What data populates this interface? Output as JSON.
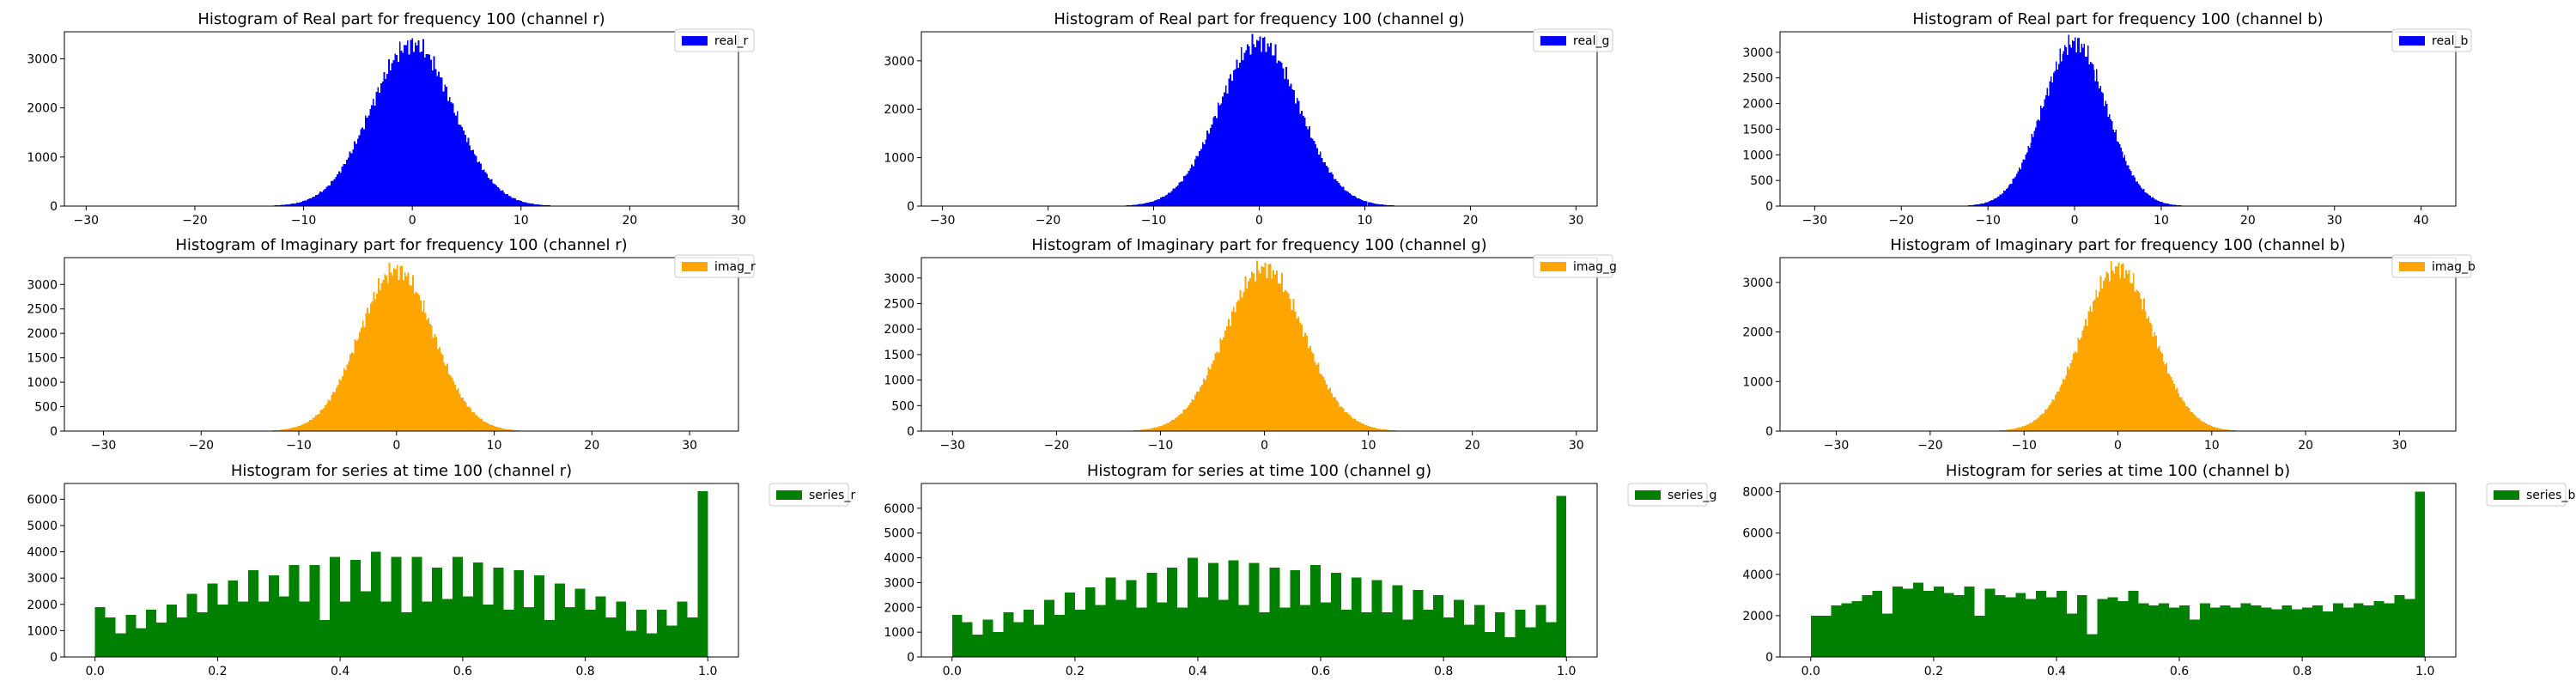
{
  "figure": {
    "background": "#ffffff"
  },
  "colors": {
    "real": "#0000ff",
    "imag": "#ffa500",
    "series": "#008000"
  },
  "chart_data": [
    {
      "id": "real_r",
      "type": "bar",
      "kind": "gaussian",
      "title": "Histogram of Real part for frequency 100 (channel r)",
      "legend": "real_r",
      "legend_position": "top-right",
      "color": "#0000ff",
      "xlim": [
        -32,
        30
      ],
      "ylim": [
        0,
        3550
      ],
      "xticks": [
        -30,
        -20,
        -10,
        0,
        10,
        20,
        30
      ],
      "yticks": [
        0,
        1000,
        2000,
        3000
      ],
      "distribution": {
        "center": 0,
        "sigma": 3.8,
        "peak": 3300,
        "range": [
          -22,
          21
        ],
        "bins": 300
      }
    },
    {
      "id": "real_g",
      "type": "bar",
      "kind": "gaussian",
      "title": "Histogram of Real part for frequency 100 (channel g)",
      "legend": "real_g",
      "legend_position": "top-right",
      "color": "#0000ff",
      "xlim": [
        -32,
        32
      ],
      "ylim": [
        0,
        3600
      ],
      "xticks": [
        -30,
        -20,
        -10,
        0,
        10,
        20,
        30
      ],
      "yticks": [
        0,
        1000,
        2000,
        3000
      ],
      "distribution": {
        "center": 0,
        "sigma": 3.8,
        "peak": 3400,
        "range": [
          -22,
          22
        ],
        "bins": 300
      }
    },
    {
      "id": "real_b",
      "type": "bar",
      "kind": "gaussian",
      "title": "Histogram of Real part for frequency 100 (channel b)",
      "legend": "real_b",
      "legend_position": "top-right",
      "color": "#0000ff",
      "xlim": [
        -34,
        44
      ],
      "ylim": [
        0,
        3400
      ],
      "xticks": [
        -30,
        -20,
        -10,
        0,
        10,
        20,
        30,
        40
      ],
      "yticks": [
        0,
        500,
        1000,
        1500,
        2000,
        2500,
        3000
      ],
      "distribution": {
        "center": 0,
        "sigma": 3.7,
        "peak": 3200,
        "range": [
          -22,
          22
        ],
        "bins": 300
      }
    },
    {
      "id": "imag_r",
      "type": "bar",
      "kind": "gaussian",
      "title": "Histogram of Imaginary part for frequency 100 (channel r)",
      "legend": "imag_r",
      "legend_position": "top-right",
      "color": "#ffa500",
      "xlim": [
        -34,
        35
      ],
      "ylim": [
        0,
        3550
      ],
      "xticks": [
        -30,
        -20,
        -10,
        0,
        10,
        20,
        30
      ],
      "yticks": [
        0,
        500,
        1000,
        1500,
        2000,
        2500,
        3000
      ],
      "distribution": {
        "center": 0,
        "sigma": 3.8,
        "peak": 3300,
        "range": [
          -24,
          24
        ],
        "bins": 300
      }
    },
    {
      "id": "imag_g",
      "type": "bar",
      "kind": "gaussian",
      "title": "Histogram of Imaginary part for frequency 100 (channel g)",
      "legend": "imag_g",
      "legend_position": "top-right",
      "color": "#ffa500",
      "xlim": [
        -33,
        32
      ],
      "ylim": [
        0,
        3400
      ],
      "xticks": [
        -30,
        -20,
        -10,
        0,
        10,
        20,
        30
      ],
      "yticks": [
        0,
        500,
        1000,
        1500,
        2000,
        2500,
        3000
      ],
      "distribution": {
        "center": 0,
        "sigma": 3.8,
        "peak": 3200,
        "range": [
          -24,
          24
        ],
        "bins": 300
      }
    },
    {
      "id": "imag_b",
      "type": "bar",
      "kind": "gaussian",
      "title": "Histogram of Imaginary part for frequency 100 (channel b)",
      "legend": "imag_b",
      "legend_position": "top-right",
      "color": "#ffa500",
      "xlim": [
        -36,
        36
      ],
      "ylim": [
        0,
        3500
      ],
      "xticks": [
        -30,
        -20,
        -10,
        0,
        10,
        20,
        30
      ],
      "yticks": [
        0,
        1000,
        2000,
        3000
      ],
      "distribution": {
        "center": 0,
        "sigma": 3.8,
        "peak": 3300,
        "range": [
          -24,
          24
        ],
        "bins": 300
      }
    },
    {
      "id": "series_r",
      "type": "bar",
      "kind": "bins",
      "title": "Histogram for series at time 100 (channel r)",
      "legend": "series_r",
      "legend_position": "outside-right",
      "color": "#008000",
      "xlim": [
        -0.05,
        1.05
      ],
      "ylim": [
        0,
        6600
      ],
      "xticks": [
        0.0,
        0.2,
        0.4,
        0.6,
        0.8,
        1.0
      ],
      "xticklabels": [
        "0.0",
        "0.2",
        "0.4",
        "0.6",
        "0.8",
        "1.0"
      ],
      "yticks": [
        0,
        1000,
        2000,
        3000,
        4000,
        5000,
        6000
      ],
      "bin_range": [
        0,
        1
      ],
      "values": [
        1900,
        1500,
        900,
        1600,
        1100,
        1800,
        1300,
        2000,
        1500,
        2400,
        1700,
        2800,
        2000,
        2900,
        2100,
        3300,
        2100,
        3100,
        2300,
        3500,
        2100,
        3500,
        1400,
        3800,
        2100,
        3700,
        2500,
        4000,
        2100,
        3800,
        1700,
        3800,
        2100,
        3400,
        2200,
        3800,
        2300,
        3600,
        2000,
        3400,
        1800,
        3300,
        1900,
        3100,
        1400,
        2800,
        1900,
        2600,
        1800,
        2300,
        1500,
        2100,
        1000,
        1800,
        900,
        1800,
        1200,
        2100,
        1500,
        6300
      ]
    },
    {
      "id": "series_g",
      "type": "bar",
      "kind": "bins",
      "title": "Histogram for series at time 100 (channel g)",
      "legend": "series_g",
      "legend_position": "outside-right",
      "color": "#008000",
      "xlim": [
        -0.05,
        1.05
      ],
      "ylim": [
        0,
        7000
      ],
      "xticks": [
        0.0,
        0.2,
        0.4,
        0.6,
        0.8,
        1.0
      ],
      "xticklabels": [
        "0.0",
        "0.2",
        "0.4",
        "0.6",
        "0.8",
        "1.0"
      ],
      "yticks": [
        0,
        1000,
        2000,
        3000,
        4000,
        5000,
        6000
      ],
      "bin_range": [
        0,
        1
      ],
      "values": [
        1700,
        1400,
        900,
        1500,
        1000,
        1800,
        1400,
        1900,
        1300,
        2300,
        1700,
        2600,
        1900,
        2800,
        2100,
        3200,
        2300,
        3100,
        2000,
        3400,
        2200,
        3600,
        2000,
        4000,
        2400,
        3800,
        2300,
        3900,
        2100,
        3800,
        1800,
        3600,
        2000,
        3500,
        2100,
        3700,
        2200,
        3400,
        1900,
        3200,
        1800,
        3100,
        1800,
        2900,
        1500,
        2700,
        1900,
        2500,
        1600,
        2300,
        1300,
        2100,
        1000,
        1800,
        800,
        1900,
        1200,
        2100,
        1400,
        6500
      ]
    },
    {
      "id": "series_b",
      "type": "bar",
      "kind": "bins",
      "title": "Histogram for series at time 100 (channel b)",
      "legend": "series_b",
      "legend_position": "outside-right",
      "color": "#008000",
      "xlim": [
        -0.05,
        1.05
      ],
      "ylim": [
        0,
        8400
      ],
      "xticks": [
        0.0,
        0.2,
        0.4,
        0.6,
        0.8,
        1.0
      ],
      "xticklabels": [
        "0.0",
        "0.2",
        "0.4",
        "0.6",
        "0.8",
        "1.0"
      ],
      "yticks": [
        0,
        2000,
        4000,
        6000,
        8000
      ],
      "bin_range": [
        0,
        1
      ],
      "values": [
        2000,
        2000,
        2500,
        2600,
        2700,
        3000,
        3200,
        2100,
        3400,
        3300,
        3600,
        3200,
        3400,
        3100,
        3000,
        3400,
        2000,
        3300,
        3000,
        2900,
        3100,
        2800,
        3200,
        2900,
        3200,
        2100,
        3000,
        1100,
        2800,
        2900,
        2700,
        3200,
        2600,
        2500,
        2600,
        2400,
        2500,
        1800,
        2600,
        2400,
        2500,
        2400,
        2600,
        2500,
        2400,
        2300,
        2500,
        2300,
        2400,
        2500,
        2200,
        2600,
        2400,
        2600,
        2500,
        2700,
        2600,
        3000,
        2800,
        8000
      ]
    }
  ]
}
